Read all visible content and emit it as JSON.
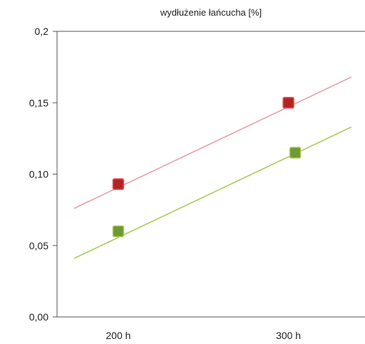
{
  "chart_data": {
    "type": "scatter",
    "title": "wydłużenie łańcucha [%]",
    "xlabel": "",
    "ylabel": "",
    "x_tick_labels": [
      "200 h",
      "300 h"
    ],
    "x_tick_values": [
      200,
      300
    ],
    "xlim": [
      164,
      345
    ],
    "y_tick_labels": [
      "0,2",
      "0,15",
      "0,10",
      "0,05",
      "0,00"
    ],
    "y_tick_values": [
      0.2,
      0.15,
      0.1,
      0.05,
      0.0
    ],
    "ylim": [
      0,
      0.2
    ],
    "grid": false,
    "legend": false,
    "series": [
      {
        "points": [
          {
            "x": 200,
            "y": 0.093
          },
          {
            "x": 300,
            "y": 0.15
          }
        ],
        "trendline": {
          "x": [
            174,
            337
          ],
          "y": [
            0.076,
            0.168
          ]
        },
        "marker_color": "#b52222",
        "marker_edge": "#e05a5a",
        "line_color": "#e8a0a8"
      },
      {
        "points": [
          {
            "x": 200,
            "y": 0.06
          },
          {
            "x": 304,
            "y": 0.115
          }
        ],
        "trendline": {
          "x": [
            174,
            337
          ],
          "y": [
            0.041,
            0.133
          ]
        },
        "marker_color": "#6e9a2e",
        "marker_edge": "#a8c86a",
        "line_color": "#a8cc55"
      }
    ],
    "axis_color": "#555555"
  }
}
